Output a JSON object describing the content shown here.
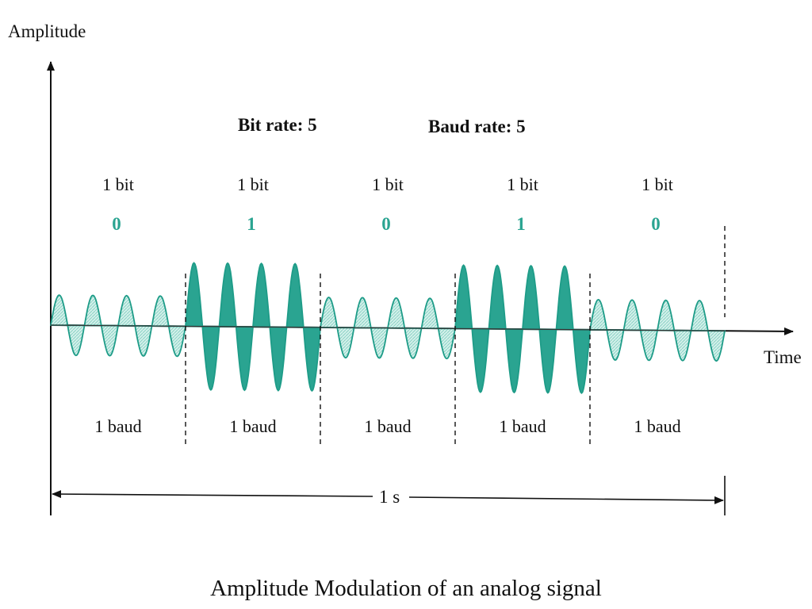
{
  "diagram": {
    "y_axis_label": "Amplitude",
    "x_axis_label": "Time",
    "bit_rate_label": "Bit rate: 5",
    "baud_rate_label": "Baud rate: 5",
    "duration_label": "1 s",
    "segments": [
      {
        "bit_label": "1 bit",
        "value": "0",
        "baud_label": "1 baud",
        "amplitude": "low"
      },
      {
        "bit_label": "1 bit",
        "value": "1",
        "baud_label": "1 baud",
        "amplitude": "high"
      },
      {
        "bit_label": "1 bit",
        "value": "0",
        "baud_label": "1 baud",
        "amplitude": "low"
      },
      {
        "bit_label": "1 bit",
        "value": "1",
        "baud_label": "1 baud",
        "amplitude": "high"
      },
      {
        "bit_label": "1 bit",
        "value": "0",
        "baud_label": "1 baud",
        "amplitude": "low"
      }
    ],
    "cycles_per_segment": 4,
    "colors": {
      "wave_fill_low": "#c5ebe3",
      "wave_fill_high": "#2aa491",
      "wave_stroke": "#1e9c88",
      "bit_value": "#2aa491",
      "axis": "#111111",
      "text": "#111111"
    }
  },
  "caption": "Amplitude Modulation of an analog signal"
}
